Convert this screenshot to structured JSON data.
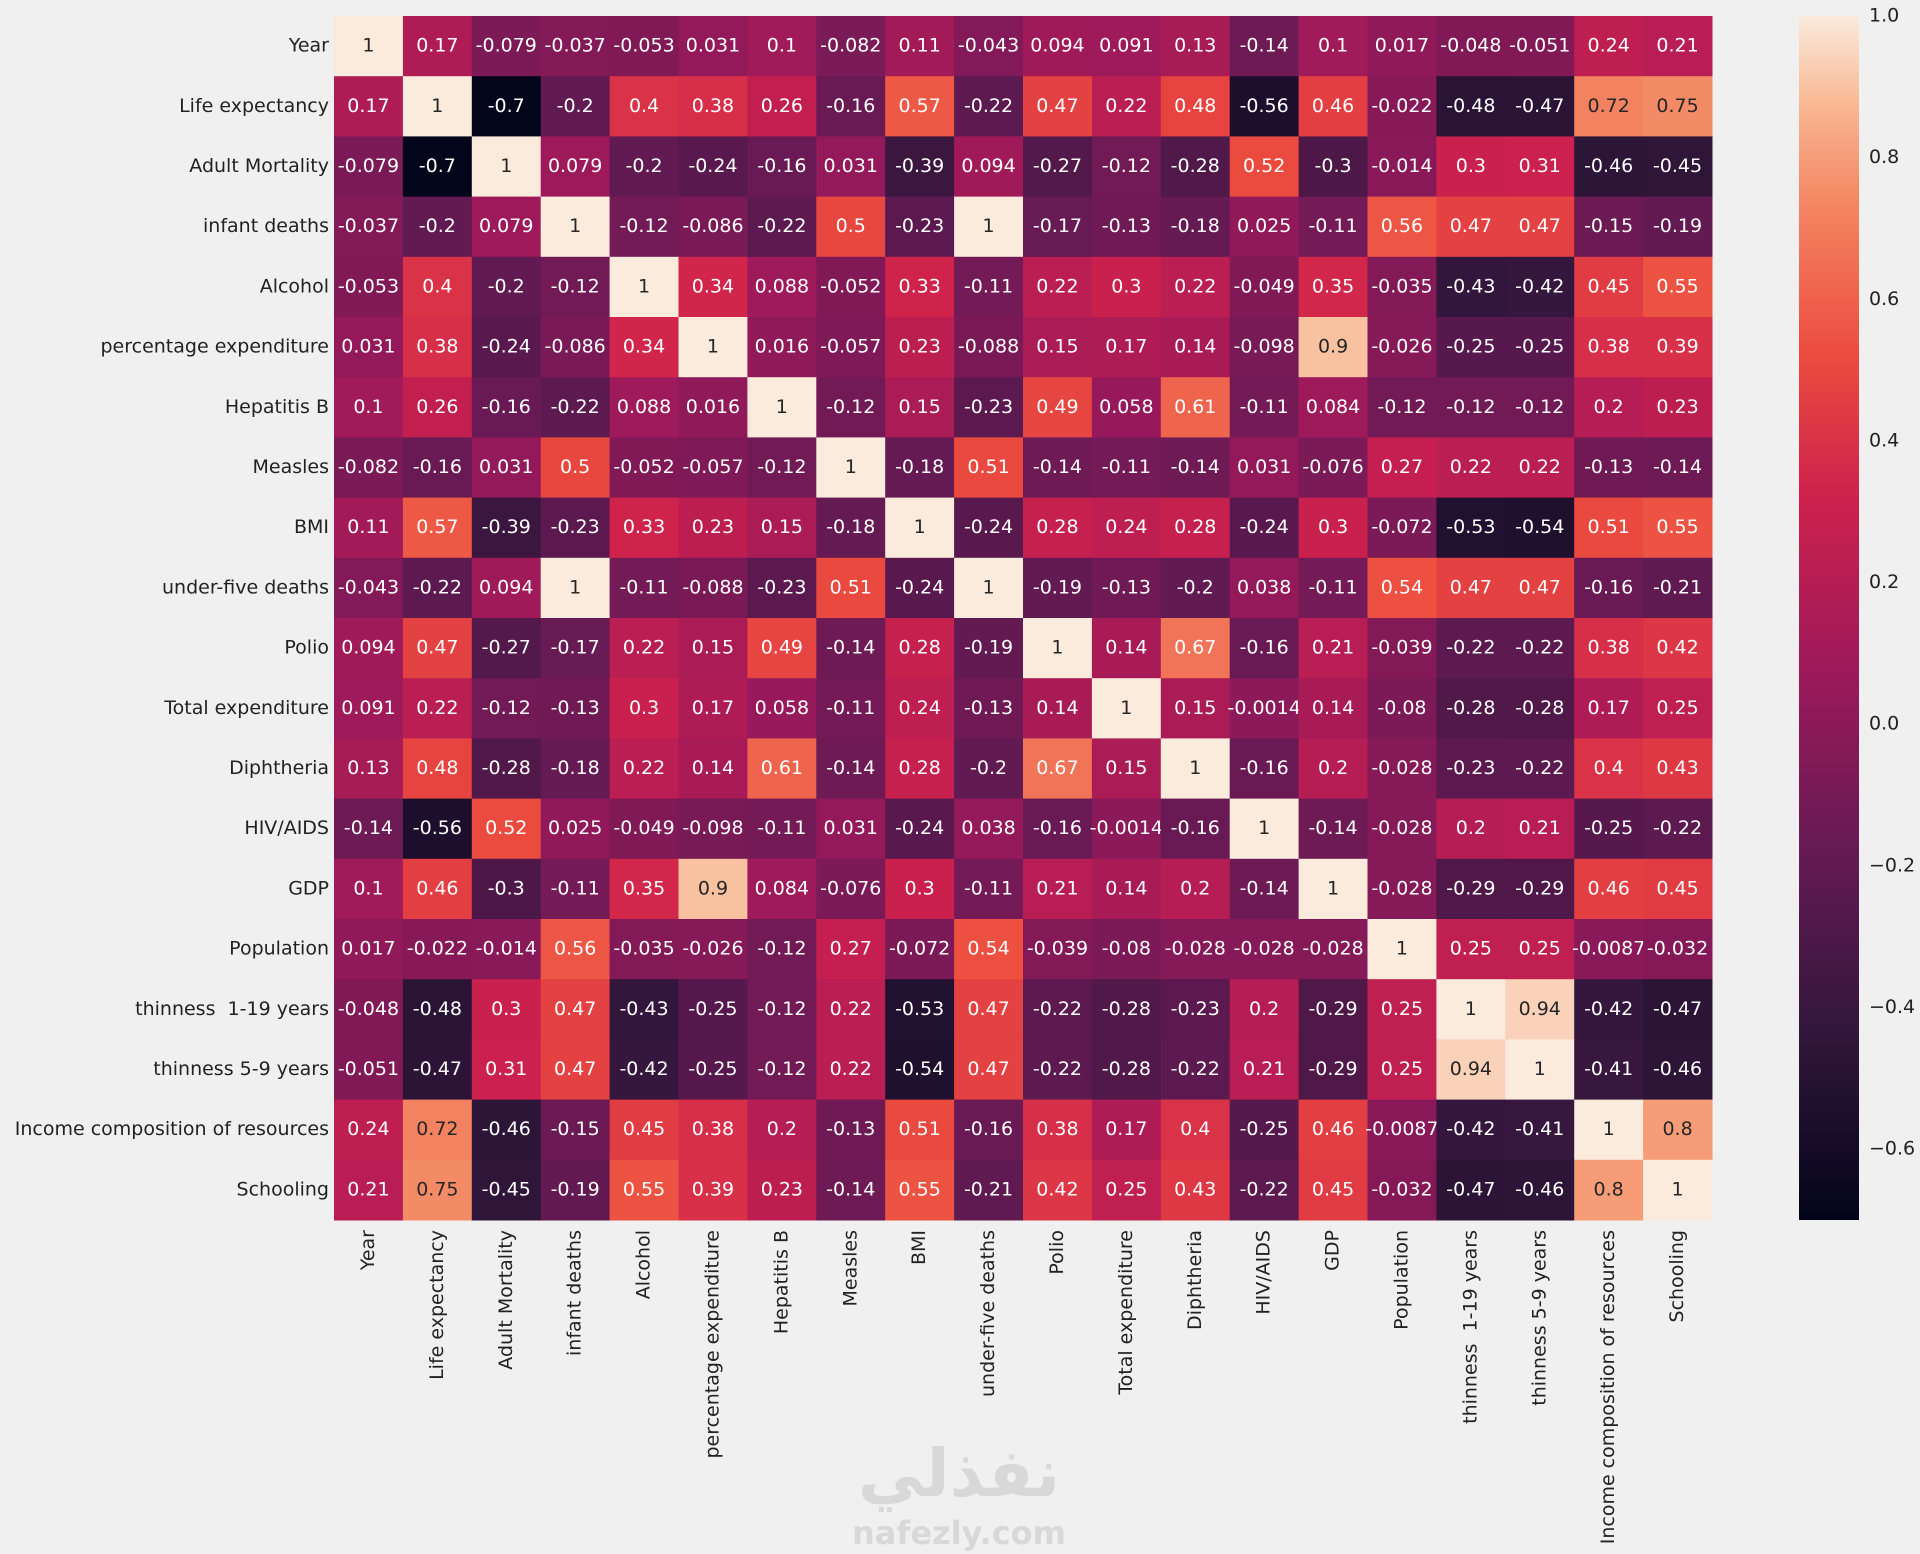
{
  "chart_data": {
    "type": "heatmap",
    "colormap": "rocket",
    "categories": [
      "Year",
      "Life expectancy",
      "Adult Mortality",
      "infant deaths",
      "Alcohol",
      "percentage expenditure",
      "Hepatitis B",
      "Measles",
      "BMI",
      "under-five deaths",
      "Polio",
      "Total expenditure",
      "Diphtheria",
      "HIV/AIDS",
      "GDP",
      "Population",
      "thinness  1-19 years",
      "thinness 5-9 years",
      "Income composition of resources",
      "Schooling"
    ],
    "values": [
      [
        1,
        0.17,
        -0.079,
        -0.037,
        -0.053,
        0.031,
        0.1,
        -0.082,
        0.11,
        -0.043,
        0.094,
        0.091,
        0.13,
        -0.14,
        0.1,
        0.017,
        -0.048,
        -0.051,
        0.24,
        0.21
      ],
      [
        0.17,
        1,
        -0.7,
        -0.2,
        0.4,
        0.38,
        0.26,
        -0.16,
        0.57,
        -0.22,
        0.47,
        0.22,
        0.48,
        -0.56,
        0.46,
        -0.022,
        -0.48,
        -0.47,
        0.72,
        0.75
      ],
      [
        -0.079,
        -0.7,
        1,
        0.079,
        -0.2,
        -0.24,
        -0.16,
        0.031,
        -0.39,
        0.094,
        -0.27,
        -0.12,
        -0.28,
        0.52,
        -0.3,
        -0.014,
        0.3,
        0.31,
        -0.46,
        -0.45
      ],
      [
        -0.037,
        -0.2,
        0.079,
        1,
        -0.12,
        -0.086,
        -0.22,
        0.5,
        -0.23,
        1,
        -0.17,
        -0.13,
        -0.18,
        0.025,
        -0.11,
        0.56,
        0.47,
        0.47,
        -0.15,
        -0.19
      ],
      [
        -0.053,
        0.4,
        -0.2,
        -0.12,
        1,
        0.34,
        0.088,
        -0.052,
        0.33,
        -0.11,
        0.22,
        0.3,
        0.22,
        -0.049,
        0.35,
        -0.035,
        -0.43,
        -0.42,
        0.45,
        0.55
      ],
      [
        0.031,
        0.38,
        -0.24,
        -0.086,
        0.34,
        1,
        0.016,
        -0.057,
        0.23,
        -0.088,
        0.15,
        0.17,
        0.14,
        -0.098,
        0.9,
        -0.026,
        -0.25,
        -0.25,
        0.38,
        0.39
      ],
      [
        0.1,
        0.26,
        -0.16,
        -0.22,
        0.088,
        0.016,
        1,
        -0.12,
        0.15,
        -0.23,
        0.49,
        0.058,
        0.61,
        -0.11,
        0.084,
        -0.12,
        -0.12,
        -0.12,
        0.2,
        0.23
      ],
      [
        -0.082,
        -0.16,
        0.031,
        0.5,
        -0.052,
        -0.057,
        -0.12,
        1,
        -0.18,
        0.51,
        -0.14,
        -0.11,
        -0.14,
        0.031,
        -0.076,
        0.27,
        0.22,
        0.22,
        -0.13,
        -0.14
      ],
      [
        0.11,
        0.57,
        -0.39,
        -0.23,
        0.33,
        0.23,
        0.15,
        -0.18,
        1,
        -0.24,
        0.28,
        0.24,
        0.28,
        -0.24,
        0.3,
        -0.072,
        -0.53,
        -0.54,
        0.51,
        0.55
      ],
      [
        -0.043,
        -0.22,
        0.094,
        1,
        -0.11,
        -0.088,
        -0.23,
        0.51,
        -0.24,
        1,
        -0.19,
        -0.13,
        -0.2,
        0.038,
        -0.11,
        0.54,
        0.47,
        0.47,
        -0.16,
        -0.21
      ],
      [
        0.094,
        0.47,
        -0.27,
        -0.17,
        0.22,
        0.15,
        0.49,
        -0.14,
        0.28,
        -0.19,
        1,
        0.14,
        0.67,
        -0.16,
        0.21,
        -0.039,
        -0.22,
        -0.22,
        0.38,
        0.42
      ],
      [
        0.091,
        0.22,
        -0.12,
        -0.13,
        0.3,
        0.17,
        0.058,
        -0.11,
        0.24,
        -0.13,
        0.14,
        1,
        0.15,
        -0.0014,
        0.14,
        -0.08,
        -0.28,
        -0.28,
        0.17,
        0.25
      ],
      [
        0.13,
        0.48,
        -0.28,
        -0.18,
        0.22,
        0.14,
        0.61,
        -0.14,
        0.28,
        -0.2,
        0.67,
        0.15,
        1,
        -0.16,
        0.2,
        -0.028,
        -0.23,
        -0.22,
        0.4,
        0.43
      ],
      [
        -0.14,
        -0.56,
        0.52,
        0.025,
        -0.049,
        -0.098,
        -0.11,
        0.031,
        -0.24,
        0.038,
        -0.16,
        -0.0014,
        -0.16,
        1,
        -0.14,
        -0.028,
        0.2,
        0.21,
        -0.25,
        -0.22
      ],
      [
        0.1,
        0.46,
        -0.3,
        -0.11,
        0.35,
        0.9,
        0.084,
        -0.076,
        0.3,
        -0.11,
        0.21,
        0.14,
        0.2,
        -0.14,
        1,
        -0.028,
        -0.29,
        -0.29,
        0.46,
        0.45
      ],
      [
        0.017,
        -0.022,
        -0.014,
        0.56,
        -0.035,
        -0.026,
        -0.12,
        0.27,
        -0.072,
        0.54,
        -0.039,
        -0.08,
        -0.028,
        -0.028,
        -0.028,
        1,
        0.25,
        0.25,
        -0.0087,
        -0.032
      ],
      [
        -0.048,
        -0.48,
        0.3,
        0.47,
        -0.43,
        -0.25,
        -0.12,
        0.22,
        -0.53,
        0.47,
        -0.22,
        -0.28,
        -0.23,
        0.2,
        -0.29,
        0.25,
        1,
        0.94,
        -0.42,
        -0.47
      ],
      [
        -0.051,
        -0.47,
        0.31,
        0.47,
        -0.42,
        -0.25,
        -0.12,
        0.22,
        -0.54,
        0.47,
        -0.22,
        -0.28,
        -0.22,
        0.21,
        -0.29,
        0.25,
        0.94,
        1,
        -0.41,
        -0.46
      ],
      [
        0.24,
        0.72,
        -0.46,
        -0.15,
        0.45,
        0.38,
        0.2,
        -0.13,
        0.51,
        -0.16,
        0.38,
        0.17,
        0.4,
        -0.25,
        0.46,
        -0.0087,
        -0.42,
        -0.41,
        1,
        0.8
      ],
      [
        0.21,
        0.75,
        -0.45,
        -0.19,
        0.55,
        0.39,
        0.23,
        -0.14,
        0.55,
        -0.21,
        0.42,
        0.25,
        0.43,
        -0.22,
        0.45,
        -0.032,
        -0.47,
        -0.46,
        0.8,
        1
      ]
    ],
    "zlim": [
      -0.7,
      1
    ],
    "zticks": [
      {
        "value": 1,
        "label": "1.0"
      },
      {
        "value": 0.8,
        "label": "0.8"
      },
      {
        "value": 0.6,
        "label": "0.6"
      },
      {
        "value": 0.4,
        "label": "0.4"
      },
      {
        "value": 0.2,
        "label": "0.2"
      },
      {
        "value": 0,
        "label": "0.0"
      },
      {
        "value": -0.2,
        "label": "−0.2"
      },
      {
        "value": -0.4,
        "label": "−0.4"
      },
      {
        "value": -0.6,
        "label": "−0.6"
      }
    ]
  },
  "watermark": [
    "نفذلي",
    "nafezly.com"
  ]
}
